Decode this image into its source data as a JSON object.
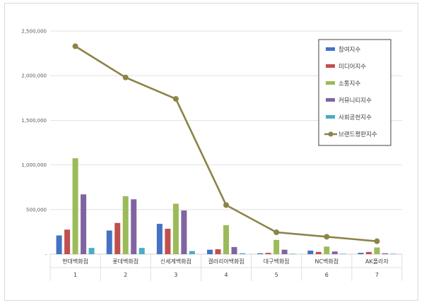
{
  "chart_data": {
    "type": "bar",
    "categories": [
      "현대백화점",
      "롯데백화점",
      "신세계백화점",
      "갤러리아백화점",
      "대구백화점",
      "NC백화점",
      "AK플라자"
    ],
    "ranks": [
      "1",
      "2",
      "3",
      "4",
      "5",
      "6",
      "7"
    ],
    "ylim": [
      0,
      2500000
    ],
    "yticks": [
      0,
      500000,
      1000000,
      1500000,
      2000000,
      2500000
    ],
    "ytick_labels": [
      "-",
      "500,000",
      "1,000,000",
      "1,500,000",
      "2,000,000",
      "2,500,000"
    ],
    "grid": true,
    "legend_position": "top-right",
    "series": [
      {
        "name": "참여지수",
        "type": "bar",
        "color": "#4472c4",
        "values": [
          210000,
          265000,
          340000,
          50000,
          10000,
          40000,
          15000
        ]
      },
      {
        "name": "미디어지수",
        "type": "bar",
        "color": "#c0504d",
        "values": [
          275000,
          350000,
          285000,
          55000,
          15000,
          25000,
          25000
        ]
      },
      {
        "name": "소통지수",
        "type": "bar",
        "color": "#9bbb59",
        "values": [
          1075000,
          650000,
          565000,
          325000,
          160000,
          85000,
          75000
        ]
      },
      {
        "name": "커뮤니티지수",
        "type": "bar",
        "color": "#8064a2",
        "values": [
          670000,
          615000,
          490000,
          80000,
          50000,
          30000,
          10000
        ]
      },
      {
        "name": "사회공헌지수",
        "type": "bar",
        "color": "#4bacc6",
        "values": [
          70000,
          70000,
          35000,
          10000,
          5000,
          5000,
          5000
        ]
      },
      {
        "name": "브랜드평판지수",
        "type": "line",
        "color": "#8c8347",
        "values": [
          2330000,
          1980000,
          1740000,
          550000,
          245000,
          195000,
          145000
        ]
      }
    ]
  }
}
